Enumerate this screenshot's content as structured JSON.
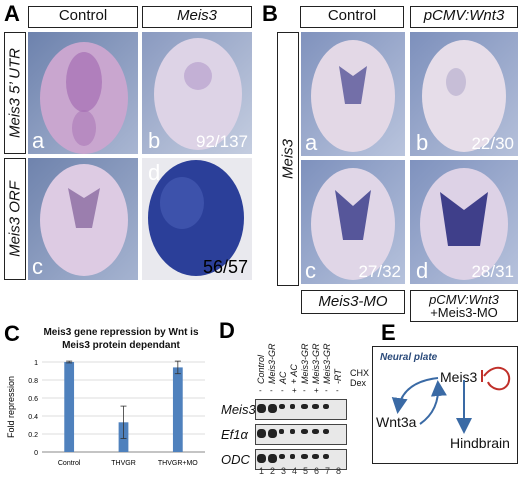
{
  "panelA": {
    "label": "A",
    "col_headers": [
      "Control",
      "Meis3"
    ],
    "row_labels": [
      "Meis3 5’ UTR",
      "Meis3 ORF"
    ],
    "sublabels": [
      "a",
      "b",
      "c",
      "d"
    ],
    "counts": [
      "92/137",
      "56/57"
    ]
  },
  "panelB": {
    "label": "B",
    "col_headers": [
      "Control",
      "pCMV:Wnt3"
    ],
    "row_label": "Meis3",
    "sublabels": [
      "a",
      "b",
      "c",
      "d"
    ],
    "counts": [
      "22/30",
      "27/32",
      "28/31"
    ],
    "footer_left": "Meis3-MO",
    "footer_right_line1": "pCMV:Wnt3",
    "footer_right_line2": "+Meis3-MO"
  },
  "panelC": {
    "label": "C",
    "title_line1": "Meis3 gene repression by Wnt is",
    "title_line2": "Meis3 protein dependant",
    "ylabel": "Fold repression",
    "yticks": [
      "0",
      "0.2",
      "0.4",
      "0.6",
      "0.8",
      "1"
    ]
  },
  "chart_data": {
    "type": "bar",
    "title": "Meis3 gene repression by Wnt is Meis3 protein dependant",
    "categories": [
      "Control",
      "THVGR",
      "THVGR+MO"
    ],
    "values": [
      1.0,
      0.33,
      0.94
    ],
    "errors": [
      0.01,
      0.18,
      0.07
    ],
    "xlabel": "",
    "ylabel": "Fold repression",
    "ylim": [
      0,
      1
    ],
    "grid": true,
    "bar_color": "#4f81bd"
  },
  "panelD": {
    "label": "D",
    "col_headers": [
      "Control",
      "Meis3-GR",
      "AC",
      "+ AC",
      "Meis3-GR",
      "Meis3-GR",
      "Meis3-GR",
      "-RT"
    ],
    "col_signs": [
      "-",
      "-",
      "-",
      "+",
      "-",
      "+",
      "-",
      "-"
    ],
    "chx_signs": [
      "-",
      "+",
      "-",
      "+",
      "-",
      "+",
      "-",
      "-"
    ],
    "side_labels": [
      "CHX",
      "Dex"
    ],
    "rows": [
      "Meis3",
      "Ef1α",
      "ODC"
    ],
    "lanes": [
      "1",
      "2",
      "3",
      "4",
      "5",
      "6",
      "7",
      "8"
    ]
  },
  "panelE": {
    "label": "E",
    "title": "Neural plate",
    "nodes": [
      "Meis3",
      "Wnt3a",
      "Hindbrain"
    ],
    "arrow_color": "#3a6aa5",
    "repress_color": "#c0302a"
  }
}
